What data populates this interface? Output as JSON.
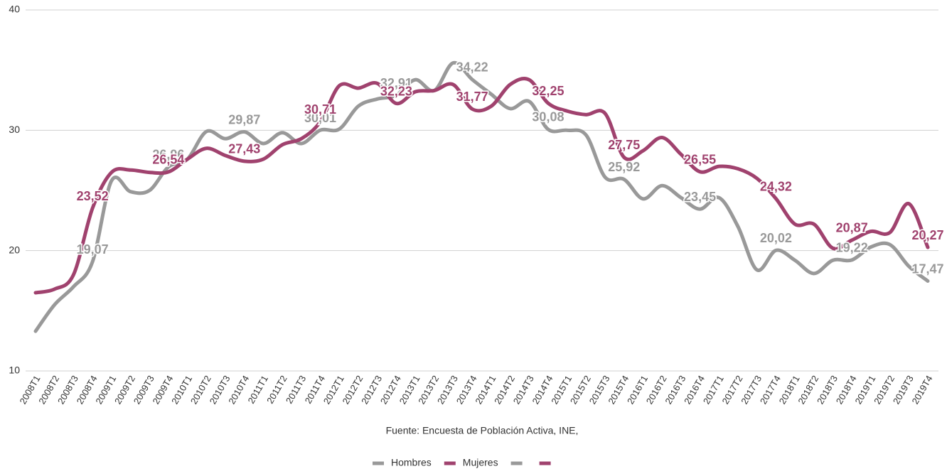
{
  "chart_data": {
    "type": "line",
    "categories": [
      "2008T1",
      "2008T2",
      "2008T3",
      "2008T4",
      "2009T1",
      "2009T2",
      "2009T3",
      "2009T4",
      "2010T1",
      "2010T2",
      "2010T3",
      "2010T4",
      "2011T1",
      "2011T2",
      "2011T3",
      "2011T4",
      "2012T1",
      "2012T2",
      "2012T3",
      "2012T4",
      "2013T1",
      "2013T2",
      "2013T3",
      "2013T4",
      "2014T1",
      "2014T2",
      "2014T3",
      "2014T4",
      "2015T1",
      "2015T2",
      "2015T3",
      "2015T4",
      "2016T1",
      "2016T2",
      "2016T3",
      "2016T4",
      "2017T1",
      "2017T2",
      "2017T3",
      "2017T4",
      "2018T1",
      "2018T2",
      "2018T3",
      "2018T4",
      "2019T1",
      "2019T2",
      "2019T3",
      "2019T4"
    ],
    "series": [
      {
        "name": "Hombres",
        "color": "#999999",
        "values": [
          13.3,
          15.5,
          17.0,
          19.07,
          25.8,
          24.9,
          25.0,
          26.96,
          27.6,
          29.9,
          29.3,
          29.87,
          28.9,
          29.8,
          28.9,
          30.01,
          30.1,
          32.0,
          32.6,
          32.91,
          34.2,
          33.3,
          35.6,
          34.22,
          33.0,
          31.8,
          32.4,
          30.08,
          30.0,
          29.6,
          26.1,
          25.92,
          24.3,
          25.4,
          24.4,
          23.45,
          24.4,
          22.0,
          18.4,
          20.02,
          19.2,
          18.1,
          19.2,
          19.22,
          20.3,
          20.5,
          18.7,
          17.47
        ],
        "value_labels": [
          null,
          null,
          null,
          "19,07",
          null,
          null,
          null,
          "26,96",
          null,
          null,
          null,
          "29,87",
          null,
          null,
          null,
          "30,01",
          null,
          null,
          null,
          "32,91",
          null,
          null,
          null,
          "34,22",
          null,
          null,
          null,
          "30,08",
          null,
          null,
          null,
          "25,92",
          null,
          null,
          null,
          "23,45",
          null,
          null,
          null,
          "20,02",
          null,
          null,
          null,
          "19,22",
          null,
          null,
          null,
          "17,47"
        ]
      },
      {
        "name": "Mujeres",
        "color": "#a0426e",
        "values": [
          16.5,
          16.8,
          18.0,
          23.52,
          26.5,
          26.7,
          26.5,
          26.54,
          27.6,
          28.5,
          27.9,
          27.43,
          27.6,
          28.8,
          29.3,
          30.71,
          33.7,
          33.5,
          33.9,
          32.23,
          33.2,
          33.3,
          33.8,
          31.77,
          32.0,
          33.8,
          34.2,
          32.25,
          31.6,
          31.3,
          31.4,
          27.75,
          28.3,
          29.4,
          28.0,
          26.55,
          27.0,
          26.8,
          26.0,
          24.32,
          22.2,
          22.2,
          20.2,
          20.87,
          21.6,
          21.5,
          23.9,
          20.27
        ],
        "value_labels": [
          null,
          null,
          null,
          "23,52",
          null,
          null,
          null,
          "26,54",
          null,
          null,
          null,
          "27,43",
          null,
          null,
          null,
          "30,71",
          null,
          null,
          null,
          "32,23",
          null,
          null,
          null,
          "31,77",
          null,
          null,
          null,
          "32,25",
          null,
          null,
          null,
          "27,75",
          null,
          null,
          null,
          "26,55",
          null,
          null,
          null,
          "24,32",
          null,
          null,
          null,
          "20,87",
          null,
          null,
          null,
          "20,27"
        ]
      }
    ],
    "ylim": [
      10,
      40
    ],
    "yticks": [
      10,
      20,
      30,
      40
    ],
    "grid": true,
    "annotation": "Fuente: Encuesta de Población Activa, INE,",
    "legend": "bottom"
  }
}
